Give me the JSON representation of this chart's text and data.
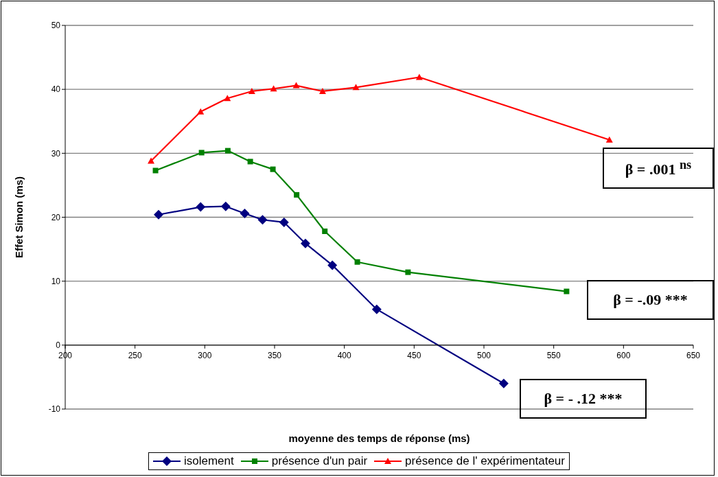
{
  "chart_data": {
    "type": "line",
    "xlabel": "moyenne des temps de réponse (ms)",
    "ylabel": "Effet Simon (ms)",
    "xlim": [
      200,
      650
    ],
    "xticks": [
      200,
      250,
      300,
      350,
      400,
      450,
      500,
      550,
      600,
      650
    ],
    "ylim": [
      -10,
      50
    ],
    "yticks": [
      -10,
      0,
      10,
      20,
      30,
      40,
      50
    ],
    "grid": "y",
    "legend": "bottom",
    "series": [
      {
        "name": "isolement",
        "color": "#000080",
        "marker": "diamond",
        "x": [
          266.9,
          297,
          315,
          328.6,
          341.4,
          356.8,
          372.1,
          391.4,
          423.2,
          514.2
        ],
        "values": [
          20.4,
          21.6,
          21.7,
          20.6,
          19.6,
          19.2,
          15.9,
          12.5,
          5.6,
          -6.0
        ]
      },
      {
        "name": "présence d'un pair",
        "color": "#008000",
        "marker": "square",
        "x": [
          264.7,
          297.7,
          316.5,
          332.6,
          348.8,
          365.8,
          386,
          409.3,
          445.6,
          559.2
        ],
        "values": [
          27.3,
          30.1,
          30.4,
          28.7,
          27.5,
          23.5,
          17.8,
          13.0,
          11.4,
          8.4
        ]
      },
      {
        "name": "présence de l' expérimentateur",
        "color": "#ff0000",
        "marker": "triangle",
        "x": [
          261.5,
          297,
          316.2,
          333.7,
          349.3,
          365.5,
          384.4,
          408.3,
          453.7,
          589.9
        ],
        "values": [
          28.8,
          36.5,
          38.6,
          39.7,
          40.1,
          40.6,
          39.7,
          40.3,
          41.9,
          32.1
        ]
      }
    ],
    "annotations": [
      "β = .001 $^{ns}$",
      "β = -.09 ***",
      "β = - .12 ***"
    ]
  }
}
